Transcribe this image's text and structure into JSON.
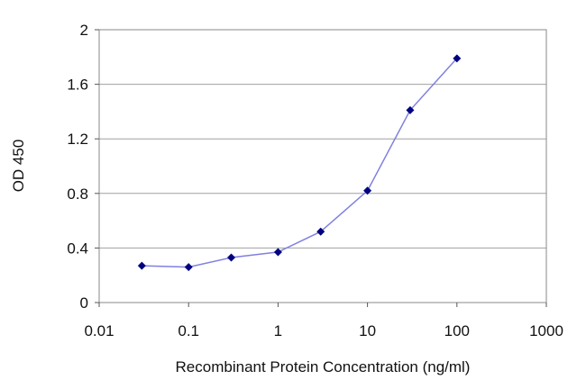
{
  "chart_data": {
    "type": "line",
    "title": "",
    "xlabel": "Recombinant Protein Concentration (ng/ml)",
    "ylabel": "OD 450",
    "xscale": "log",
    "xlim": [
      0.01,
      1000
    ],
    "ylim": [
      0,
      2
    ],
    "x_ticks": [
      0.01,
      0.1,
      1,
      10,
      100,
      1000
    ],
    "x_tick_labels": [
      "0.01",
      "0.1",
      "1",
      "10",
      "100",
      "1000"
    ],
    "y_ticks": [
      0,
      0.4,
      0.8,
      1.2,
      1.6,
      2
    ],
    "y_tick_labels": [
      "0",
      "0.4",
      "0.8",
      "1.2",
      "1.6",
      "2"
    ],
    "grid": "horizontal",
    "legend": "none",
    "series": [
      {
        "x": [
          0.03,
          0.1,
          0.3,
          1,
          3,
          10,
          30,
          100
        ],
        "y": [
          0.27,
          0.26,
          0.33,
          0.37,
          0.52,
          0.82,
          1.41,
          1.79
        ],
        "line_color": "#8080e0",
        "marker_color": "#000080",
        "marker": "diamond"
      }
    ]
  }
}
